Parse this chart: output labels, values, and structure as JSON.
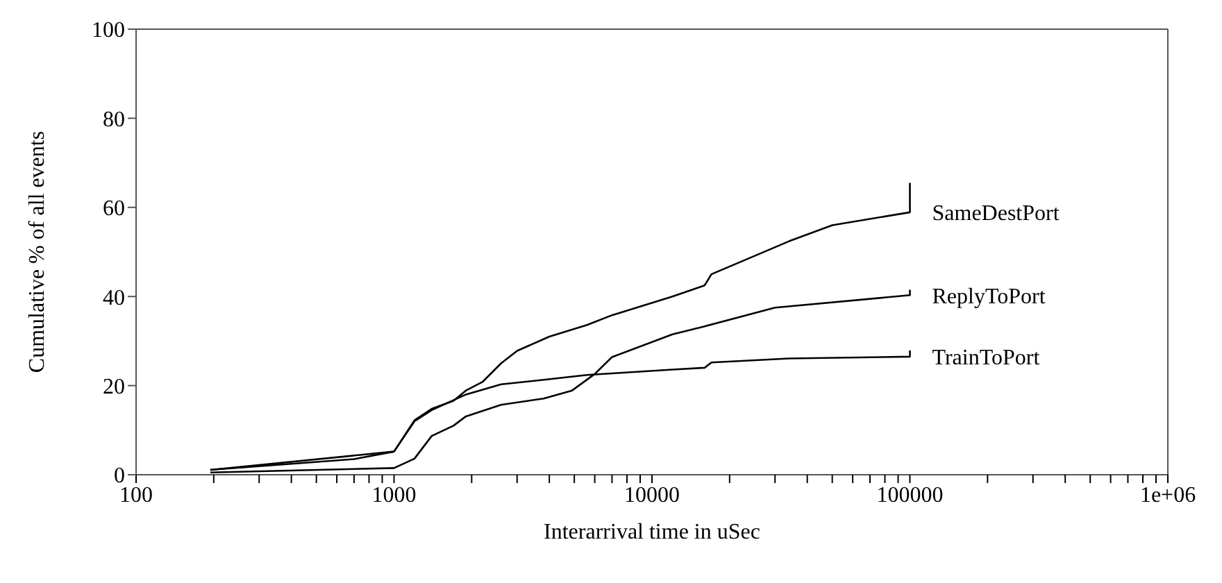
{
  "chart_data": {
    "type": "line",
    "xlabel": "Interarrival time in uSec",
    "ylabel": "Cumulative % of all events",
    "log": "x",
    "legend": false,
    "marker": "none",
    "line_style": "solid",
    "xlim": [
      100,
      1000000
    ],
    "ylim": [
      0,
      100
    ],
    "xticks": [
      100,
      {
        "value": 200,
        "label": null
      },
      {
        "value": 300,
        "label": null
      },
      {
        "value": 400,
        "label": null
      },
      {
        "value": 500,
        "label": null
      },
      {
        "value": 600,
        "label": null
      },
      {
        "value": 700,
        "label": null
      },
      {
        "value": 800,
        "label": null
      },
      {
        "value": 900,
        "label": null
      },
      1000,
      {
        "value": 2000,
        "label": null
      },
      {
        "value": 3000,
        "label": null
      },
      {
        "value": 4000,
        "label": null
      },
      {
        "value": 5000,
        "label": null
      },
      {
        "value": 6000,
        "label": null
      },
      {
        "value": 7000,
        "label": null
      },
      {
        "value": 8000,
        "label": null
      },
      {
        "value": 9000,
        "label": null
      },
      10000,
      {
        "value": 20000,
        "label": null
      },
      {
        "value": 30000,
        "label": null
      },
      {
        "value": 40000,
        "label": null
      },
      {
        "value": 50000,
        "label": null
      },
      {
        "value": 60000,
        "label": null
      },
      {
        "value": 70000,
        "label": null
      },
      {
        "value": 80000,
        "label": null
      },
      {
        "value": 90000,
        "label": null
      },
      100000,
      {
        "value": 200000,
        "label": null
      },
      {
        "value": 300000,
        "label": null
      },
      {
        "value": 400000,
        "label": null
      },
      {
        "value": 500000,
        "label": null
      },
      {
        "value": 600000,
        "label": null
      },
      {
        "value": 700000,
        "label": null
      },
      {
        "value": 800000,
        "label": null
      },
      {
        "value": 900000,
        "label": null
      },
      {
        "value": 1000000,
        "label": "1e+06"
      }
    ],
    "yticks": [
      0,
      20,
      40,
      60,
      80,
      100
    ],
    "series": [
      {
        "name": "SameDestPort",
        "color": "#000000",
        "x": [
          194,
          700,
          1000,
          1200,
          1400,
          1700,
          1900,
          2200,
          2600,
          3000,
          4000,
          5600,
          7000,
          12000,
          16000,
          17000,
          34000,
          50000,
          100000,
          100000
        ],
        "values": [
          1.1,
          3.5,
          5.2,
          12.2,
          14.8,
          16.6,
          18.9,
          20.8,
          25,
          27.8,
          31,
          33.6,
          35.8,
          40,
          42.5,
          45,
          52.4,
          56,
          58.9,
          65.5
        ]
      },
      {
        "name": "ReplyToPort",
        "color": "#000000",
        "x": [
          194,
          1000,
          1200,
          1400,
          1700,
          1900,
          2600,
          3800,
          4900,
          6000,
          7000,
          12000,
          16000,
          30000,
          100000,
          100000
        ],
        "values": [
          0.5,
          1.5,
          3.6,
          8.7,
          11,
          13.1,
          15.7,
          17.1,
          18.9,
          22.6,
          26.4,
          31.5,
          33.3,
          37.5,
          40.3,
          41.5
        ]
      },
      {
        "name": "TrainToPort",
        "color": "#000000",
        "x": [
          194,
          1000,
          1200,
          1400,
          1900,
          2600,
          3800,
          5600,
          12000,
          16000,
          17000,
          34000,
          100000,
          100000
        ],
        "values": [
          1.1,
          5.2,
          12,
          14.5,
          18,
          20.3,
          21.3,
          22.4,
          23.6,
          24,
          25.2,
          26.1,
          26.5,
          27.9
        ]
      }
    ]
  }
}
